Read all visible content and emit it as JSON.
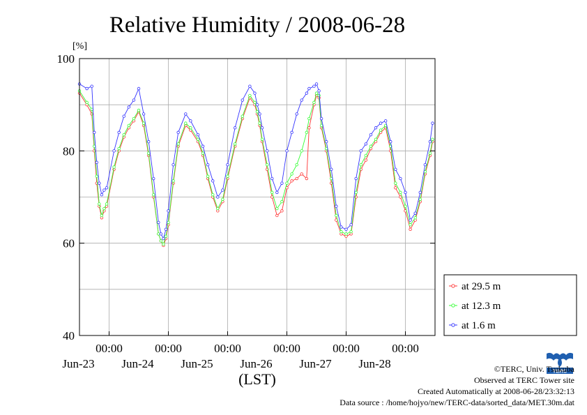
{
  "chart_data": {
    "type": "line",
    "title": "Relative Humidity / 2008-06-28",
    "ylabel": "[%]",
    "xlabel": "(LST)",
    "ylim": [
      40,
      100
    ],
    "y_ticks": [
      "40",
      "60",
      "80",
      "100"
    ],
    "xlim": [
      0,
      144
    ],
    "x_ticks": [
      {
        "time": "00:00",
        "date": "Jun-23",
        "hour": 12
      },
      {
        "time": "00:00",
        "date": "Jun-24",
        "hour": 36
      },
      {
        "time": "00:00",
        "date": "Jun-25",
        "hour": 60
      },
      {
        "time": "00:00",
        "date": "Jun-26",
        "hour": 84
      },
      {
        "time": "00:00",
        "date": "Jun-27",
        "hour": 108
      },
      {
        "time": "00:00",
        "date": "Jun-28",
        "hour": 132
      }
    ],
    "grid": true,
    "legend_position": "right",
    "x_units": "hours from 2008-06-22 12:00 LST",
    "series": [
      {
        "name": "at 29.5 m",
        "color": "#ff3333",
        "x": [
          0,
          3,
          5,
          6,
          7,
          8,
          9,
          10,
          11,
          14,
          16,
          18,
          20,
          22,
          24,
          26,
          28,
          30,
          32,
          33,
          34,
          35,
          36,
          38,
          40,
          43,
          45,
          48,
          50,
          52,
          54,
          56,
          58,
          60,
          63,
          66,
          69,
          71,
          72,
          73,
          74,
          76,
          78,
          80,
          82,
          84,
          86,
          88,
          90,
          92,
          93,
          95,
          96,
          97,
          98,
          100,
          102,
          104,
          106,
          108,
          110,
          112,
          114,
          116,
          118,
          120,
          122,
          124,
          126,
          128,
          130,
          132,
          134,
          136,
          138,
          140,
          142,
          143
        ],
        "values": [
          92.5,
          90,
          88,
          80,
          73,
          68,
          65.5,
          67,
          68,
          76,
          80,
          83,
          85,
          86.5,
          88.5,
          85.5,
          79,
          70,
          62,
          60.5,
          59.5,
          61,
          64,
          73,
          81,
          85.5,
          84.5,
          82,
          79,
          74,
          70,
          67,
          69,
          74,
          81,
          87,
          91.5,
          90,
          88,
          85.5,
          82,
          76,
          70,
          66,
          67,
          72,
          73.5,
          74,
          75,
          74,
          85,
          90,
          92,
          91.5,
          85,
          80,
          73,
          65,
          62,
          61.5,
          62,
          70,
          76,
          78,
          80.5,
          82,
          84,
          85,
          80,
          72,
          70,
          67,
          63,
          65,
          69,
          75,
          79,
          82
        ]
      },
      {
        "name": "at 12.3 m",
        "color": "#33ff33",
        "x": [
          0,
          3,
          5,
          6,
          7,
          8,
          9,
          10,
          11,
          14,
          16,
          18,
          20,
          22,
          24,
          26,
          28,
          30,
          32,
          33,
          34,
          35,
          36,
          38,
          40,
          43,
          45,
          48,
          50,
          52,
          54,
          56,
          58,
          60,
          63,
          66,
          69,
          71,
          72,
          73,
          74,
          76,
          78,
          80,
          82,
          84,
          86,
          88,
          90,
          92,
          93,
          95,
          96,
          97,
          98,
          100,
          102,
          104,
          106,
          108,
          110,
          112,
          114,
          116,
          118,
          120,
          122,
          124,
          126,
          128,
          130,
          132,
          134,
          136,
          138,
          140,
          142,
          143
        ],
        "values": [
          93,
          90.5,
          89,
          81,
          74.5,
          68.5,
          66,
          67.5,
          68.5,
          76.5,
          80.5,
          83.5,
          85.5,
          87,
          88.8,
          86,
          79.5,
          70.5,
          62,
          60.5,
          59.8,
          61.5,
          64.5,
          73.5,
          81.5,
          86,
          85,
          82.5,
          79.5,
          74.5,
          70.5,
          67.5,
          69.5,
          74.5,
          81.5,
          87.5,
          92,
          90.5,
          88.5,
          86,
          82.5,
          77,
          71,
          67.5,
          69,
          73,
          75,
          77,
          80,
          84,
          87,
          90.5,
          92.5,
          92,
          85.5,
          80.5,
          74,
          66,
          62.5,
          62,
          62.5,
          71,
          77,
          79,
          81,
          82.5,
          84.5,
          85.5,
          81,
          73,
          71,
          68,
          64,
          65.5,
          69.5,
          75.5,
          79.5,
          82.5
        ]
      },
      {
        "name": "at 1.6 m",
        "color": "#3333ff",
        "x": [
          0,
          3,
          5,
          6,
          7,
          8,
          9,
          10,
          11,
          14,
          16,
          18,
          20,
          22,
          24,
          26,
          28,
          30,
          32,
          33,
          34,
          35,
          36,
          38,
          40,
          43,
          45,
          48,
          50,
          52,
          54,
          56,
          58,
          60,
          63,
          66,
          69,
          71,
          72,
          73,
          74,
          76,
          78,
          80,
          82,
          84,
          86,
          88,
          90,
          92,
          93,
          95,
          96,
          97,
          98,
          100,
          102,
          104,
          106,
          108,
          110,
          112,
          114,
          116,
          118,
          120,
          122,
          124,
          126,
          128,
          130,
          132,
          134,
          136,
          138,
          140,
          142,
          143
        ],
        "values": [
          94.5,
          93.5,
          94,
          84,
          77.5,
          73,
          70.5,
          71.5,
          72,
          80,
          84,
          87.5,
          89.5,
          91,
          93.5,
          88,
          82,
          74,
          64.5,
          62,
          61,
          63,
          67,
          77,
          84,
          88,
          86.5,
          83.5,
          81,
          77,
          73.5,
          70,
          71.5,
          77,
          85,
          91,
          94,
          92.5,
          90,
          88,
          85,
          80,
          74,
          71,
          73,
          80,
          84,
          88,
          91,
          92.5,
          93.5,
          94,
          94.5,
          93,
          87,
          82,
          76,
          68,
          63.5,
          63,
          64,
          74,
          80,
          81.5,
          83.5,
          85,
          86,
          86.5,
          82,
          76,
          74,
          71,
          65,
          66.5,
          71,
          77,
          82,
          86
        ]
      }
    ]
  },
  "footer": {
    "copyright": "©TERC, Univ. Tsukuba",
    "observed": "Observed at TERC Tower site",
    "created": "Created Automatically at 2008-06-28/23:32:13",
    "source": "Data source : /home/hojyo/new/TERC-data/sorted_data/MET.30m.dat",
    "logo_text": "TERC"
  }
}
